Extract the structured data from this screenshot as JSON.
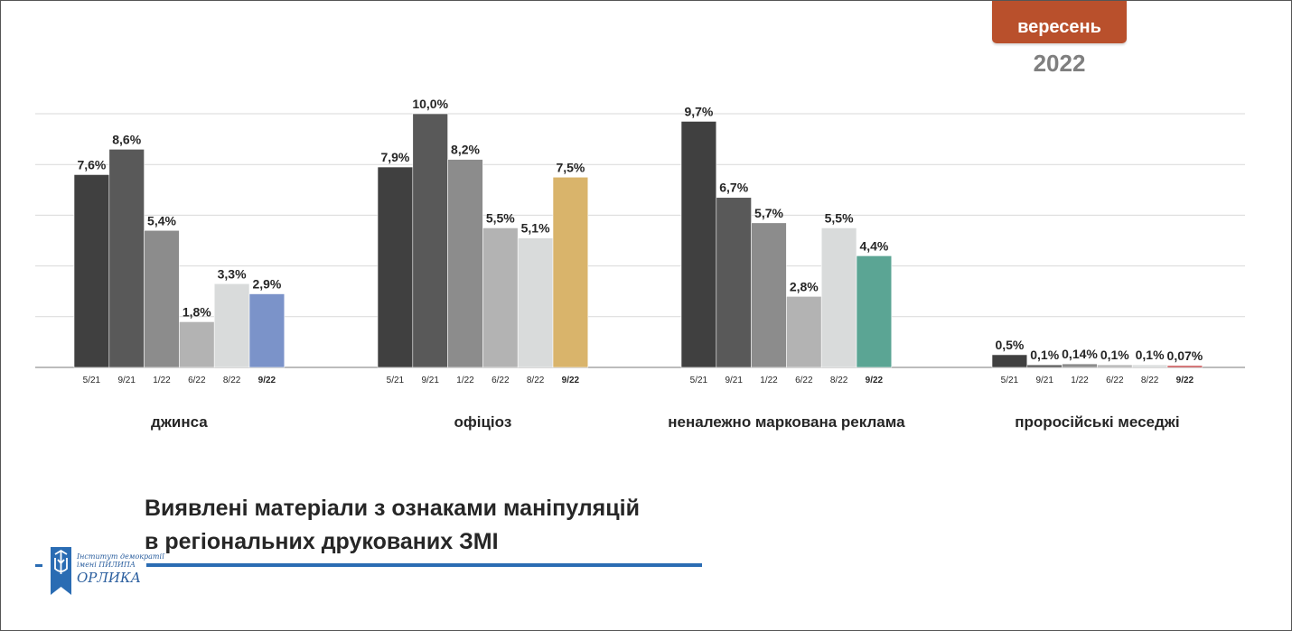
{
  "header": {
    "month_badge": "вересень",
    "year": "2022"
  },
  "title": {
    "line1": "Виявлені матеріали з ознаками маніпуляцій",
    "line2": "в регіональних друкованих ЗМІ"
  },
  "logo": {
    "line1": "Інститут демократії",
    "line2": "імені ПИЛИПА",
    "line3": "ОРЛИКА"
  },
  "colors": {
    "badge": "#b9502c",
    "accent_line": "#2a6cb3",
    "gridline": "#d9d9d9",
    "axis": "#a6a6a6"
  },
  "chart_data": {
    "type": "bar",
    "ylim": [
      0,
      10
    ],
    "grid": true,
    "period_labels": [
      "5/21",
      "9/21",
      "1/22",
      "6/22",
      "8/22",
      "9/22"
    ],
    "period_colors": [
      "#404040",
      "#595959",
      "#8c8c8c",
      "#b3b3b3",
      "#d9dbdb",
      null
    ],
    "groups": [
      {
        "label": "джинса",
        "values": [
          7.6,
          8.6,
          5.4,
          1.8,
          3.3,
          2.9
        ],
        "value_labels": [
          "7,6%",
          "8,6%",
          "5,4%",
          "1,8%",
          "3,3%",
          "2,9%"
        ],
        "highlight_color": "#7b93c9"
      },
      {
        "label": "офіціоз",
        "values": [
          7.9,
          10.0,
          8.2,
          5.5,
          5.1,
          7.5
        ],
        "value_labels": [
          "7,9%",
          "10,0%",
          "8,2%",
          "5,5%",
          "5,1%",
          "7,5%"
        ],
        "highlight_color": "#d9b46b"
      },
      {
        "label": "неналежно маркована реклама",
        "values": [
          9.7,
          6.7,
          5.7,
          2.8,
          5.5,
          4.4
        ],
        "value_labels": [
          "9,7%",
          "6,7%",
          "5,7%",
          "2,8%",
          "5,5%",
          "4,4%"
        ],
        "highlight_color": "#5ba594"
      },
      {
        "label": "проросійські меседжі",
        "values": [
          0.5,
          0.1,
          0.14,
          0.1,
          0.1,
          0.07
        ],
        "value_labels": [
          "0,5%",
          "0,1%",
          "0,14%",
          "0,1%",
          "0,1%",
          "0,07%"
        ],
        "highlight_color": "#c0393b"
      }
    ]
  }
}
